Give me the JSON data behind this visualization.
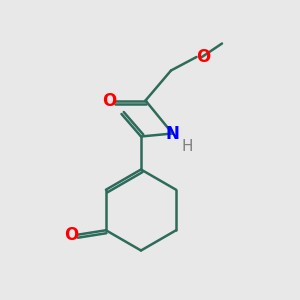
{
  "bg_color": "#e8e8e8",
  "bond_color": "#2d6b5a",
  "O_color": "#ff0000",
  "N_color": "#0000ff",
  "H_color": "#808080",
  "line_width": 1.8,
  "font_size": 12,
  "fig_size": [
    3.0,
    3.0
  ],
  "dpi": 100,
  "xlim": [
    0,
    10
  ],
  "ylim": [
    0,
    10
  ]
}
